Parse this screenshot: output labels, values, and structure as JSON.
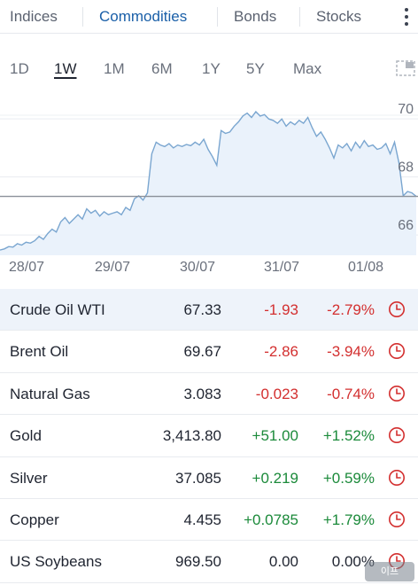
{
  "tabs": [
    {
      "label": "Indices",
      "active": false
    },
    {
      "label": "Commodities",
      "active": true
    },
    {
      "label": "Bonds",
      "active": false
    },
    {
      "label": "Stocks",
      "active": false
    }
  ],
  "periods": [
    {
      "label": "1D",
      "active": false
    },
    {
      "label": "1W",
      "active": true
    },
    {
      "label": "1M",
      "active": false
    },
    {
      "label": "6M",
      "active": false
    },
    {
      "label": "1Y",
      "active": false
    },
    {
      "label": "5Y",
      "active": false
    },
    {
      "label": "Max",
      "active": false
    }
  ],
  "chart_data": {
    "type": "area",
    "x_labels": [
      "28/07",
      "29/07",
      "30/07",
      "31/07",
      "01/08"
    ],
    "y_ticks": [
      66,
      68,
      70
    ],
    "ylim": [
      65.3,
      70.8
    ],
    "reference_value": 67.33,
    "line_color": "#7aa6d0",
    "fill_color": "#eaf2fb",
    "values": [
      65.48,
      65.52,
      65.6,
      65.58,
      65.7,
      65.65,
      65.75,
      65.72,
      65.8,
      65.95,
      65.85,
      66.05,
      66.2,
      66.1,
      66.45,
      66.6,
      66.4,
      66.55,
      66.7,
      66.55,
      66.9,
      66.75,
      66.85,
      66.65,
      66.8,
      66.7,
      66.75,
      66.8,
      66.7,
      66.95,
      66.85,
      67.25,
      67.35,
      67.2,
      67.45,
      68.8,
      69.2,
      69.1,
      69.05,
      69.15,
      69.0,
      69.1,
      69.05,
      69.12,
      69.08,
      69.2,
      69.1,
      69.3,
      68.95,
      68.7,
      68.4,
      69.6,
      69.5,
      69.55,
      69.75,
      69.9,
      70.1,
      70.2,
      70.05,
      70.25,
      70.1,
      70.15,
      70.0,
      69.95,
      69.85,
      70.0,
      69.75,
      69.9,
      69.8,
      69.95,
      69.85,
      70.05,
      69.7,
      69.4,
      69.55,
      69.3,
      69.0,
      68.65,
      69.1,
      69.0,
      69.15,
      68.9,
      69.2,
      69.0,
      69.25,
      69.05,
      69.1,
      68.95,
      69.0,
      69.15,
      68.8,
      69.2,
      68.5,
      67.35,
      67.5,
      67.45,
      67.33
    ]
  },
  "table": [
    {
      "name": "Crude Oil WTI",
      "last": "67.33",
      "chg": "-1.93",
      "pct": "-2.79%",
      "dir": "neg",
      "selected": true
    },
    {
      "name": "Brent Oil",
      "last": "69.67",
      "chg": "-2.86",
      "pct": "-3.94%",
      "dir": "neg",
      "selected": false
    },
    {
      "name": "Natural Gas",
      "last": "3.083",
      "chg": "-0.023",
      "pct": "-0.74%",
      "dir": "neg",
      "selected": false
    },
    {
      "name": "Gold",
      "last": "3,413.80",
      "chg": "+51.00",
      "pct": "+1.52%",
      "dir": "pos",
      "selected": false
    },
    {
      "name": "Silver",
      "last": "37.085",
      "chg": "+0.219",
      "pct": "+0.59%",
      "dir": "pos",
      "selected": false
    },
    {
      "name": "Copper",
      "last": "4.455",
      "chg": "+0.0785",
      "pct": "+1.79%",
      "dir": "pos",
      "selected": false
    },
    {
      "name": "US Soybeans",
      "last": "969.50",
      "chg": "0.00",
      "pct": "0.00%",
      "dir": "flat",
      "selected": false
    }
  ],
  "icons": {
    "kebab": "more-vertical-icon",
    "fullscreen": "fullscreen-icon",
    "clock": "clock-icon"
  },
  "badge": "이프"
}
